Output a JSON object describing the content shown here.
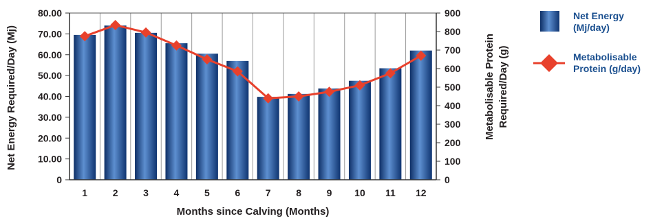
{
  "chart_data": {
    "type": "bar",
    "xlabel": "Months since Calving (Months)",
    "ylabel_left": "Net Energy Required/Day (Mj)",
    "ylabel_right": [
      "Metabolisable Protein",
      "Required/Day (g)"
    ],
    "categories": [
      "1",
      "2",
      "3",
      "4",
      "5",
      "6",
      "7",
      "8",
      "9",
      "10",
      "11",
      "12"
    ],
    "ylim_left": [
      0,
      80
    ],
    "ylim_right": [
      0,
      900
    ],
    "yticks_left": [
      "0",
      "10.00",
      "20.00",
      "30.00",
      "40.00",
      "50.00",
      "60.00",
      "70.00",
      "80.00"
    ],
    "yticks_right": [
      "0",
      "100",
      "200",
      "300",
      "400",
      "500",
      "600",
      "700",
      "800",
      "900"
    ],
    "grid": "vertical",
    "legend_position": "right",
    "series": [
      {
        "name": [
          "Net Energy",
          "(Mj/day)"
        ],
        "type": "bar",
        "axis": "left",
        "color": "#1f4f95",
        "values": [
          69.5,
          74,
          70.5,
          65.5,
          60.5,
          57,
          39.8,
          41.2,
          43.8,
          47.5,
          53.5,
          62
        ]
      },
      {
        "name": [
          "Metabolisable",
          "Protein (g/day)"
        ],
        "type": "line",
        "axis": "right",
        "color": "#e8412c",
        "values": [
          775,
          835,
          795,
          725,
          650,
          585,
          440,
          450,
          475,
          510,
          575,
          670
        ]
      }
    ]
  }
}
